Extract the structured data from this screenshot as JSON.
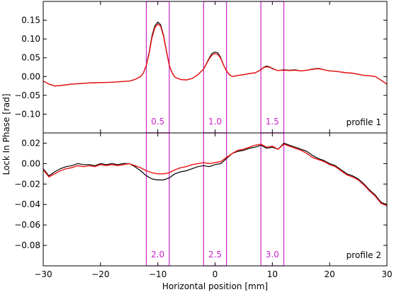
{
  "chart_data": {
    "type": "line",
    "xlabel": "Horizontal position [mm]",
    "ylabel": "Lock In Phase [rad]",
    "x_ticks": [
      -30,
      -20,
      -10,
      0,
      10,
      20,
      30
    ],
    "x_tick_labels": [
      "−30",
      "−20",
      "−10",
      "0",
      "10",
      "20",
      "30"
    ],
    "xlim": [
      -30,
      30
    ],
    "colors": {
      "series_black": "#000000",
      "series_red": "#ee1111",
      "box": "#cc22cc"
    },
    "panels": [
      {
        "label": "profile 1",
        "ylim": [
          -0.15,
          0.2
        ],
        "y_ticks": [
          -0.1,
          -0.05,
          0.0,
          0.05,
          0.1,
          0.15
        ],
        "y_tick_labels": [
          "−0.10",
          "−0.05",
          "0.00",
          "0.05",
          "0.10",
          "0.15"
        ],
        "boxes": [
          {
            "x0": -12,
            "x1": -8,
            "label": "0.5"
          },
          {
            "x0": -2,
            "x1": 2,
            "label": "1.0"
          },
          {
            "x0": 8,
            "x1": 12,
            "label": "1.5"
          }
        ],
        "series": [
          {
            "color": "black",
            "x": [
              -30,
              -29,
              -28,
              -27,
              -26,
              -25,
              -24,
              -22,
              -20,
              -18,
              -16,
              -15,
              -14,
              -13,
              -12.5,
              -12,
              -11.5,
              -11,
              -10.5,
              -10,
              -9.5,
              -9,
              -8.5,
              -8,
              -7.5,
              -7,
              -6.5,
              -6,
              -5,
              -4,
              -3,
              -2,
              -1.5,
              -1,
              -0.5,
              0,
              0.5,
              1,
              1.5,
              2,
              2.5,
              3,
              4,
              5,
              6,
              7,
              8,
              8.5,
              9,
              9.5,
              10,
              10.5,
              11,
              12,
              13,
              14,
              15,
              16,
              17,
              18,
              19,
              20,
              21,
              22,
              23,
              24,
              25,
              26,
              27,
              28,
              29,
              30
            ],
            "y": [
              -0.012,
              -0.02,
              -0.025,
              -0.024,
              -0.022,
              -0.02,
              -0.019,
              -0.017,
              -0.016,
              -0.015,
              -0.013,
              -0.012,
              -0.008,
              0.0,
              0.01,
              0.03,
              0.065,
              0.11,
              0.135,
              0.145,
              0.138,
              0.11,
              0.07,
              0.03,
              0.01,
              -0.002,
              -0.005,
              -0.008,
              -0.009,
              -0.005,
              0.005,
              0.02,
              0.035,
              0.05,
              0.062,
              0.065,
              0.063,
              0.05,
              0.03,
              0.015,
              0.005,
              0.0,
              0.003,
              0.005,
              0.008,
              0.01,
              0.018,
              0.025,
              0.028,
              0.026,
              0.022,
              0.018,
              0.016,
              0.018,
              0.017,
              0.018,
              0.015,
              0.017,
              0.02,
              0.022,
              0.018,
              0.015,
              0.014,
              0.012,
              0.01,
              0.009,
              0.006,
              0.003,
              0.002,
              0.0,
              -0.01,
              -0.02
            ]
          },
          {
            "color": "red",
            "x": [
              -30,
              -29,
              -28,
              -27,
              -26,
              -25,
              -24,
              -22,
              -20,
              -18,
              -16,
              -15,
              -14,
              -13,
              -12.5,
              -12,
              -11.5,
              -11,
              -10.5,
              -10,
              -9.5,
              -9,
              -8.5,
              -8,
              -7.5,
              -7,
              -6.5,
              -6,
              -5,
              -4,
              -3,
              -2,
              -1.5,
              -1,
              -0.5,
              0,
              0.5,
              1,
              1.5,
              2,
              2.5,
              3,
              4,
              5,
              6,
              7,
              8,
              8.5,
              9,
              9.5,
              10,
              10.5,
              11,
              12,
              13,
              14,
              15,
              16,
              17,
              18,
              19,
              20,
              21,
              22,
              23,
              24,
              25,
              26,
              27,
              28,
              29,
              30
            ],
            "y": [
              -0.012,
              -0.02,
              -0.025,
              -0.024,
              -0.022,
              -0.02,
              -0.019,
              -0.017,
              -0.016,
              -0.015,
              -0.013,
              -0.012,
              -0.008,
              0.0,
              0.01,
              0.03,
              0.062,
              0.105,
              0.13,
              0.14,
              0.134,
              0.107,
              0.068,
              0.03,
              0.01,
              -0.002,
              -0.005,
              -0.008,
              -0.009,
              -0.005,
              0.005,
              0.02,
              0.034,
              0.048,
              0.058,
              0.061,
              0.059,
              0.048,
              0.03,
              0.015,
              0.005,
              0.0,
              0.003,
              0.005,
              0.008,
              0.01,
              0.018,
              0.024,
              0.026,
              0.025,
              0.021,
              0.018,
              0.016,
              0.017,
              0.016,
              0.017,
              0.015,
              0.017,
              0.019,
              0.021,
              0.018,
              0.015,
              0.014,
              0.012,
              0.01,
              0.009,
              0.006,
              0.003,
              0.002,
              0.0,
              -0.01,
              -0.02
            ]
          }
        ]
      },
      {
        "label": "profile 2",
        "ylim": [
          -0.1,
          0.03
        ],
        "y_ticks": [
          -0.08,
          -0.06,
          -0.04,
          -0.02,
          0.0,
          0.02
        ],
        "y_tick_labels": [
          "−0.08",
          "−0.06",
          "−0.04",
          "−0.02",
          "0.00",
          "0.02"
        ],
        "boxes": [
          {
            "x0": -12,
            "x1": -8,
            "label": "2.0"
          },
          {
            "x0": -2,
            "x1": 2,
            "label": "2.5"
          },
          {
            "x0": 8,
            "x1": 12,
            "label": "3.0"
          }
        ],
        "series": [
          {
            "color": "black",
            "x": [
              -30,
              -29,
              -28,
              -27,
              -26,
              -25,
              -24,
              -23,
              -22,
              -21,
              -20,
              -19,
              -18,
              -17,
              -16,
              -15,
              -14,
              -13,
              -12,
              -11,
              -10,
              -9,
              -8,
              -7,
              -6,
              -5,
              -4,
              -3,
              -2,
              -1,
              0,
              1,
              2,
              3,
              4,
              5,
              6,
              7,
              8,
              9,
              10,
              11,
              12,
              13,
              14,
              15,
              16,
              17,
              18,
              19,
              20,
              21,
              22,
              23,
              24,
              25,
              26,
              27,
              28,
              29,
              30
            ],
            "y": [
              -0.005,
              -0.012,
              -0.008,
              -0.005,
              -0.003,
              -0.002,
              0.0,
              -0.001,
              -0.001,
              -0.002,
              0.0,
              -0.001,
              0.0,
              -0.001,
              0.0,
              0.0,
              -0.003,
              -0.007,
              -0.012,
              -0.015,
              -0.016,
              -0.016,
              -0.014,
              -0.01,
              -0.008,
              -0.007,
              -0.005,
              -0.003,
              -0.002,
              -0.003,
              -0.001,
              0.0,
              0.005,
              0.01,
              0.012,
              0.013,
              0.015,
              0.016,
              0.018,
              0.015,
              0.016,
              0.014,
              0.02,
              0.018,
              0.016,
              0.014,
              0.012,
              0.008,
              0.005,
              0.003,
              0.0,
              -0.002,
              -0.006,
              -0.01,
              -0.012,
              -0.015,
              -0.02,
              -0.026,
              -0.031,
              -0.038,
              -0.04
            ]
          },
          {
            "color": "red",
            "x": [
              -30,
              -29,
              -28,
              -27,
              -26,
              -25,
              -24,
              -23,
              -22,
              -21,
              -20,
              -19,
              -18,
              -17,
              -16,
              -15,
              -14,
              -13,
              -12,
              -11,
              -10,
              -9,
              -8,
              -7,
              -6,
              -5,
              -4,
              -3,
              -2,
              -1,
              0,
              1,
              2,
              3,
              4,
              5,
              6,
              7,
              8,
              9,
              10,
              11,
              12,
              13,
              14,
              15,
              16,
              17,
              18,
              19,
              20,
              21,
              22,
              23,
              24,
              25,
              26,
              27,
              28,
              29,
              30
            ],
            "y": [
              -0.006,
              -0.013,
              -0.01,
              -0.007,
              -0.005,
              -0.004,
              -0.002,
              -0.003,
              -0.002,
              -0.003,
              -0.001,
              -0.002,
              -0.001,
              -0.002,
              -0.001,
              0.0,
              -0.002,
              -0.004,
              -0.007,
              -0.009,
              -0.01,
              -0.01,
              -0.009,
              -0.006,
              -0.004,
              -0.003,
              -0.001,
              0.0,
              0.001,
              0.0,
              0.001,
              0.002,
              0.006,
              0.01,
              0.013,
              0.014,
              0.016,
              0.018,
              0.019,
              0.016,
              0.017,
              0.014,
              0.019,
              0.017,
              0.015,
              0.013,
              0.01,
              0.006,
              0.004,
              0.002,
              -0.001,
              -0.003,
              -0.007,
              -0.011,
              -0.013,
              -0.016,
              -0.021,
              -0.027,
              -0.032,
              -0.039,
              -0.041
            ]
          }
        ]
      }
    ]
  }
}
